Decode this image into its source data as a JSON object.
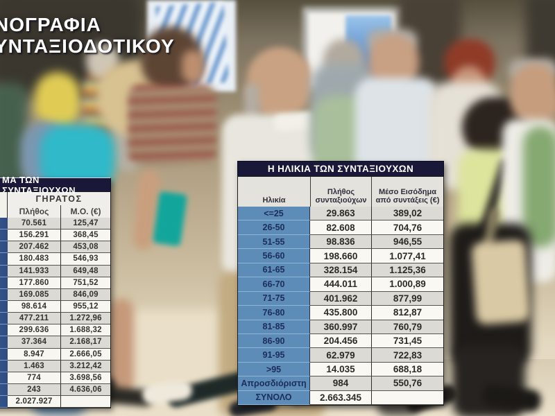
{
  "headline": {
    "line1": "ΝΟΓΡΑΦΙΑ",
    "line2": "ΥΝΤΑΞΙΟΔΟΤΙΚΟΥ"
  },
  "colors": {
    "title_bar_navy": "#191839",
    "age_cell_blue": "#5d8cb8",
    "age_text_navy": "#1c2d5a",
    "row_gray": "#dbdad4",
    "row_white": "#f9f8f3",
    "headline_white": "#ffffff"
  },
  "chart_data": [
    {
      "type": "table",
      "title": "ΜΑ ΤΩΝ ΣΥΝΤΑΞΙΟΥΧΩΝ",
      "group_header": "ΓΗΡΑΤΟΣ",
      "columns": [
        "Πλήθος",
        "Μ.Ο. (€)"
      ],
      "rows": [
        [
          "70.561",
          "125,47"
        ],
        [
          "156.291",
          "368,45"
        ],
        [
          "207.462",
          "453,08"
        ],
        [
          "180.483",
          "546,93"
        ],
        [
          "141.933",
          "649,48"
        ],
        [
          "177.860",
          "751,52"
        ],
        [
          "169.085",
          "846,09"
        ],
        [
          "98.614",
          "955,12"
        ],
        [
          "477.211",
          "1.272,96"
        ],
        [
          "299.636",
          "1.688,32"
        ],
        [
          "37.364",
          "2.168,17"
        ],
        [
          "8.947",
          "2.666,05"
        ],
        [
          "1.463",
          "3.212,42"
        ],
        [
          "774",
          "3.698,56"
        ],
        [
          "243",
          "4.636,06"
        ],
        [
          "2.027.927",
          ""
        ]
      ],
      "layout_hint": "left column of row labels cropped off left edge of image"
    },
    {
      "type": "table",
      "title": "Η ΗΛΙΚΙΑ ΤΩΝ ΣΥΝΤΑΞΙΟΥΧΩΝ",
      "columns": [
        "Ηλικία",
        "Πλήθος συνταξιούχων",
        "Μέσο Εισόδημα από συντάξεις (€)"
      ],
      "rows": [
        [
          "<=25",
          "29.863",
          "389,02"
        ],
        [
          "26-50",
          "82.608",
          "704,76"
        ],
        [
          "51-55",
          "98.836",
          "946,55"
        ],
        [
          "56-60",
          "198.660",
          "1.077,41"
        ],
        [
          "61-65",
          "328.154",
          "1.125,36"
        ],
        [
          "66-70",
          "444.011",
          "1.000,89"
        ],
        [
          "71-75",
          "401.962",
          "877,99"
        ],
        [
          "76-80",
          "435.800",
          "812,87"
        ],
        [
          "81-85",
          "360.997",
          "760,79"
        ],
        [
          "86-90",
          "204.456",
          "731,45"
        ],
        [
          "91-95",
          "62.979",
          "722,83"
        ],
        [
          ">95",
          "14.035",
          "688,18"
        ],
        [
          "Απροσδιόριστη",
          "984",
          "550,76"
        ],
        [
          "ΣΥΝΟΛΟ",
          "2.663.345",
          ""
        ]
      ]
    }
  ]
}
